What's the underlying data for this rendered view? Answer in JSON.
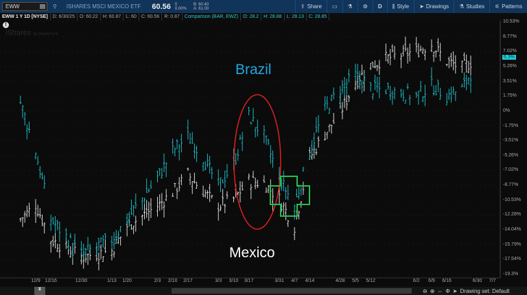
{
  "header": {
    "symbol": "EWW",
    "name": "ISHARES MSCI MEXICO ETF",
    "price": "60.56",
    "change": "0",
    "change_pct": "0.00%",
    "bid": "B: 60.40",
    "ask": "A: 61.00",
    "buttons": [
      {
        "label": "Share",
        "icon": "share-icon"
      },
      {
        "label": "",
        "icon": "alert-icon"
      },
      {
        "label": "",
        "icon": "flask-icon"
      },
      {
        "label": "",
        "icon": "gear-icon"
      },
      {
        "label": "D",
        "icon": ""
      },
      {
        "label": "Style",
        "icon": "candles-icon"
      },
      {
        "label": "Drawings",
        "icon": "cursor-icon"
      },
      {
        "label": "Studies",
        "icon": "flask-icon"
      },
      {
        "label": "Patterns",
        "icon": "pattern-icon"
      }
    ]
  },
  "info": {
    "title": "EWW 1 Y 1D [NYSE]",
    "d": "D: 6/30/25",
    "o": "O: 60.22",
    "h": "H: 60.87",
    "l": "L: 60",
    "c": "C: 60.56",
    "r": "R: 0.87",
    "comparison": "Comparison (BAR, EWZ)",
    "co": "O: 28.2",
    "ch": "H: 28.88",
    "cl": "L: 28.13",
    "cc": "C: 28.85"
  },
  "watermark": "iShares",
  "watermark_sub": "by BlackRock",
  "annotations": {
    "brazil": "Brazil",
    "mexico": "Mexico",
    "ellipse_color": "#e02020",
    "cross_color": "#22c24a"
  },
  "chart_data": {
    "type": "bar",
    "yticks": [
      "10.53%",
      "8.77%",
      "7.02%",
      "5.26%",
      "3.51%",
      "1.75%",
      "0%",
      "-1.75%",
      "-3.51%",
      "-5.26%",
      "-7.02%",
      "-8.77%",
      "-10.53%",
      "-12.28%",
      "-14.04%",
      "-15.79%",
      "-17.54%",
      "-19.3%"
    ],
    "ylim": [
      -19.3,
      10.53
    ],
    "xticks": [
      "12/9",
      "12/16",
      "12/30",
      "1/13",
      "1/20",
      "2/3",
      "2/10",
      "2/17",
      "3/3",
      "3/10",
      "3/17",
      "3/31",
      "4/7",
      "4/14",
      "4/28",
      "5/5",
      "5/12",
      "6/2",
      "6/9",
      "6/16",
      "6/30",
      "7/7"
    ],
    "last_value_badge": "6.3%",
    "series": [
      {
        "name": "EWW",
        "color": "#d8d8d8",
        "points": [
          [
            "2024-12-02",
            -12.8
          ],
          [
            "2024-12-09",
            -11
          ],
          [
            "2024-12-16",
            -15.2
          ],
          [
            "2024-12-30",
            -17.2
          ],
          [
            "2025-01-13",
            -16.5
          ],
          [
            "2025-01-20",
            -13.6
          ],
          [
            "2025-02-03",
            -11.2
          ],
          [
            "2025-02-10",
            -9.6
          ],
          [
            "2025-02-17",
            -7.5
          ],
          [
            "2025-02-24",
            -9.5
          ],
          [
            "2025-03-03",
            -11.2
          ],
          [
            "2025-03-10",
            -10.4
          ],
          [
            "2025-03-17",
            -8.3
          ],
          [
            "2025-03-24",
            -8.5
          ],
          [
            "2025-03-31",
            -10.4
          ],
          [
            "2025-04-07",
            -13.6
          ],
          [
            "2025-04-14",
            -5.5
          ],
          [
            "2025-04-21",
            -2.7
          ],
          [
            "2025-04-28",
            -0.2
          ],
          [
            "2025-05-05",
            3.4
          ],
          [
            "2025-05-12",
            5.4
          ],
          [
            "2025-05-19",
            6.2
          ],
          [
            "2025-06-02",
            7.1
          ],
          [
            "2025-06-09",
            7.9
          ],
          [
            "2025-06-16",
            5.9
          ],
          [
            "2025-06-23",
            5.1
          ],
          [
            "2025-06-30",
            6.3
          ]
        ]
      },
      {
        "name": "EWZ",
        "color": "#1fb8c2",
        "points": [
          [
            "2024-12-02",
            1.0
          ],
          [
            "2024-12-09",
            -4.7
          ],
          [
            "2024-12-16",
            -12.8
          ],
          [
            "2024-12-30",
            -16.9
          ],
          [
            "2025-01-13",
            -15.2
          ],
          [
            "2025-01-20",
            -12.8
          ],
          [
            "2025-02-03",
            -7.9
          ],
          [
            "2025-02-10",
            -4.7
          ],
          [
            "2025-02-17",
            -3.0
          ],
          [
            "2025-02-24",
            -5.5
          ],
          [
            "2025-03-03",
            -8.8
          ],
          [
            "2025-03-10",
            -6.3
          ],
          [
            "2025-03-17",
            -0.6
          ],
          [
            "2025-03-24",
            -3.0
          ],
          [
            "2025-03-31",
            -7.9
          ],
          [
            "2025-04-07",
            -11.2
          ],
          [
            "2025-04-14",
            -4.7
          ],
          [
            "2025-04-21",
            0.2
          ],
          [
            "2025-04-28",
            2.6
          ],
          [
            "2025-05-05",
            4.2
          ],
          [
            "2025-05-12",
            2.6
          ],
          [
            "2025-05-19",
            2.6
          ],
          [
            "2025-06-02",
            1.8
          ],
          [
            "2025-06-09",
            3.0
          ],
          [
            "2025-06-16",
            1.8
          ],
          [
            "2025-06-23",
            2.6
          ],
          [
            "2025-06-30",
            5.8
          ]
        ]
      }
    ]
  },
  "footer": {
    "drawing_set": "Drawing set: Default"
  }
}
